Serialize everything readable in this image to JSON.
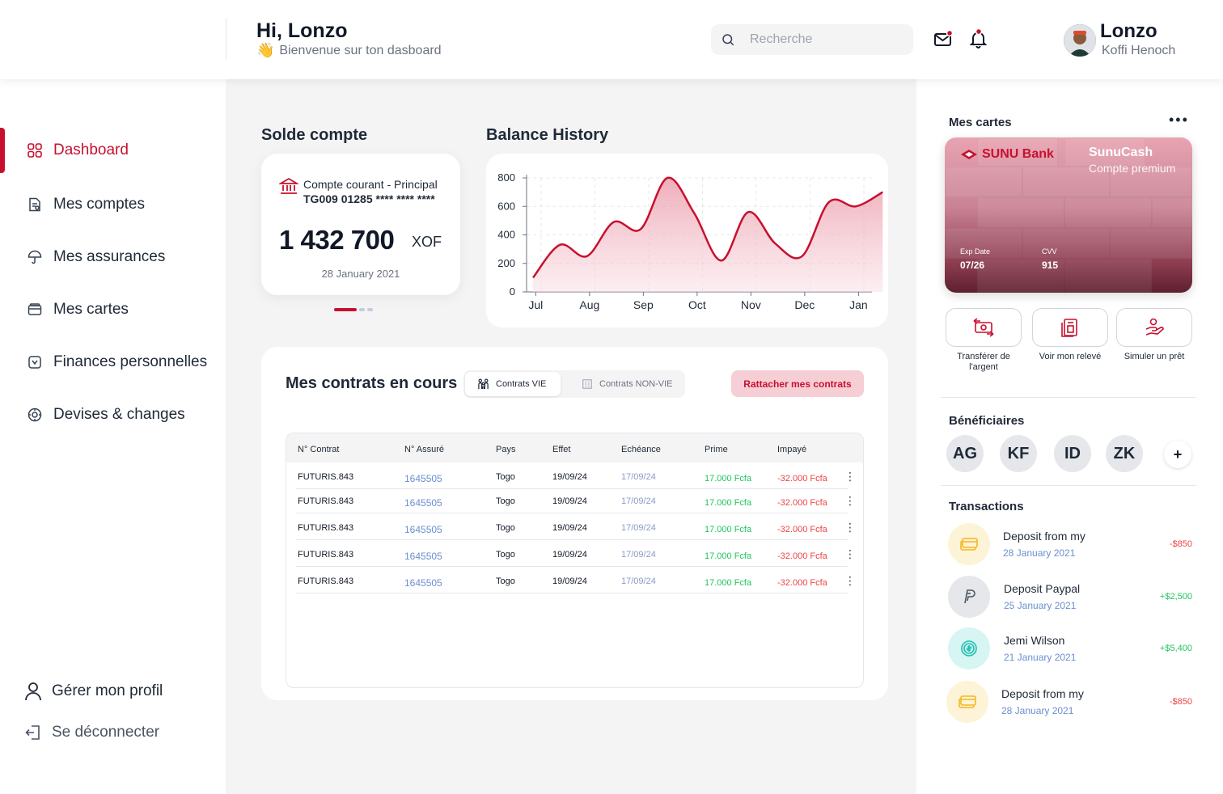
{
  "header": {
    "greeting": "Hi, Lonzo",
    "welcome": "Bienvenue sur ton dasboard",
    "search_placeholder": "Recherche",
    "user_name": "Lonzo",
    "user_fullname": "Koffi Henoch"
  },
  "sidebar": {
    "items": [
      {
        "label": "Dashboard",
        "icon": "grid-icon",
        "active": true
      },
      {
        "label": "Mes comptes",
        "icon": "document-icon"
      },
      {
        "label": "Mes assurances",
        "icon": "umbrella-icon"
      },
      {
        "label": "Mes cartes",
        "icon": "card-icon"
      },
      {
        "label": "Finances personnelles",
        "icon": "wallet-icon"
      },
      {
        "label": "Devises & changes",
        "icon": "exchange-icon"
      }
    ],
    "profile_label": "Gérer mon profil",
    "logout_label": "Se déconnecter"
  },
  "balance": {
    "section_title": "Solde compte",
    "account_name": "Compte courant - Principal",
    "account_number": "TG009 01285 **** **** ****",
    "amount": "1 432 700",
    "currency": "XOF",
    "date": "28 January 2021"
  },
  "chart_data": {
    "type": "area",
    "title": "Balance History",
    "categories": [
      "Jul",
      "Aug",
      "Sep",
      "Oct",
      "Nov",
      "Dec",
      "Jan"
    ],
    "x": [
      0,
      0.5,
      1,
      1.5,
      2,
      2.5,
      3,
      3.5,
      4,
      4.5,
      5,
      5.5,
      6,
      6.5
    ],
    "values": [
      100,
      330,
      250,
      490,
      440,
      800,
      550,
      220,
      560,
      340,
      250,
      630,
      600,
      700
    ],
    "y_ticks": [
      0,
      200,
      400,
      600,
      800
    ],
    "ylim": [
      0,
      800
    ],
    "grid": true,
    "line_color": "#c8102e"
  },
  "contracts": {
    "title": "Mes contrats en cours",
    "tab_vie": "Contrats VIE",
    "tab_nonvie": "Contrats NON-VIE",
    "attach_button": "Rattacher mes contrats",
    "columns": [
      "N° Contrat",
      "N° Assuré",
      "Pays",
      "Effet",
      "Echéance",
      "Prime",
      "Impayé"
    ],
    "rows": [
      {
        "contrat": "FUTURIS.843",
        "assure": "1645505",
        "pays": "Togo",
        "effet": "19/09/24",
        "echeance": "17/09/24",
        "prime": "17.000 Fcfa",
        "impaye": "-32.000 Fcfa"
      },
      {
        "contrat": "FUTURIS.843",
        "assure": "1645505",
        "pays": "Togo",
        "effet": "19/09/24",
        "echeance": "17/09/24",
        "prime": "17.000 Fcfa",
        "impaye": "-32.000 Fcfa"
      },
      {
        "contrat": "FUTURIS.843",
        "assure": "1645505",
        "pays": "Togo",
        "effet": "19/09/24",
        "echeance": "17/09/24",
        "prime": "17.000 Fcfa",
        "impaye": "-32.000 Fcfa"
      },
      {
        "contrat": "FUTURIS.843",
        "assure": "1645505",
        "pays": "Togo",
        "effet": "19/09/24",
        "echeance": "17/09/24",
        "prime": "17.000 Fcfa",
        "impaye": "-32.000 Fcfa"
      },
      {
        "contrat": "FUTURIS.843",
        "assure": "1645505",
        "pays": "Togo",
        "effet": "19/09/24",
        "echeance": "17/09/24",
        "prime": "17.000 Fcfa",
        "impaye": "-32.000 Fcfa"
      }
    ]
  },
  "cards": {
    "title": "Mes cartes",
    "bank_name": "SUNU Bank",
    "card_name": "SunuCash",
    "card_type": "Compte premium",
    "exp_label": "Exp Date",
    "exp_value": "07/26",
    "cvv_label": "CVV",
    "cvv_value": "915",
    "actions": [
      {
        "label": "Transférer de l'argent",
        "icon": "transfer-icon"
      },
      {
        "label": "Voir mon relevé",
        "icon": "statement-icon"
      },
      {
        "label": "Simuler un prêt",
        "icon": "loan-icon"
      }
    ]
  },
  "beneficiaries": {
    "title": "Bénéficiaires",
    "items": [
      "AG",
      "KF",
      "ID",
      "ZK"
    ],
    "add_label": "+"
  },
  "transactions": {
    "title": "Transactions",
    "items": [
      {
        "title": "Deposit from my",
        "date": "28 January 2021",
        "amount": "-$850",
        "type": "neg",
        "icon": "card-icon"
      },
      {
        "title": "Deposit Paypal",
        "date": "25 January 2021",
        "amount": "+$2,500",
        "type": "pos",
        "icon": "paypal-icon"
      },
      {
        "title": "Jemi Wilson",
        "date": "21 January 2021",
        "amount": "+$5,400",
        "type": "pos",
        "icon": "coin-icon"
      },
      {
        "title": "Deposit from my",
        "date": "28 January 2021",
        "amount": "-$850",
        "type": "neg",
        "icon": "card-icon"
      }
    ]
  },
  "colors": {
    "accent": "#c8102e",
    "positive": "#22c55e",
    "negative": "#ef4444"
  }
}
